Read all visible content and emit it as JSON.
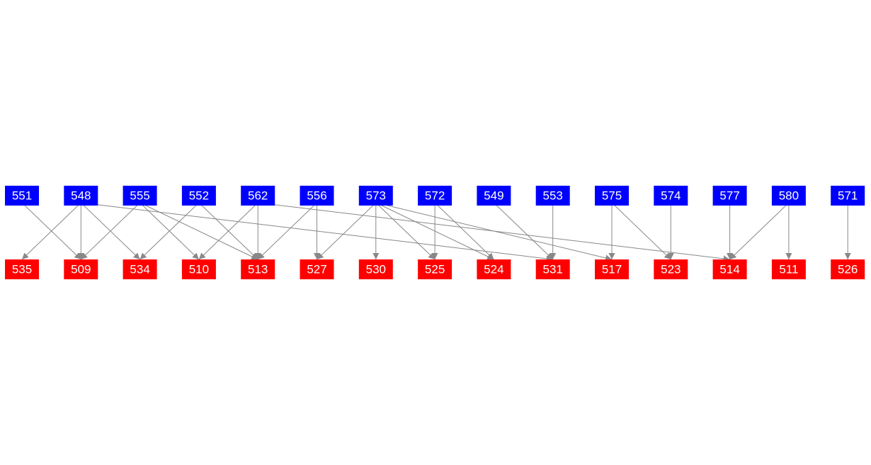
{
  "top_row": [
    "551",
    "548",
    "555",
    "552",
    "562",
    "556",
    "573",
    "572",
    "549",
    "553",
    "575",
    "574",
    "577",
    "580",
    "571"
  ],
  "bottom_row": [
    "535",
    "509",
    "534",
    "510",
    "513",
    "527",
    "530",
    "525",
    "524",
    "531",
    "517",
    "523",
    "514",
    "511",
    "526"
  ]
}
